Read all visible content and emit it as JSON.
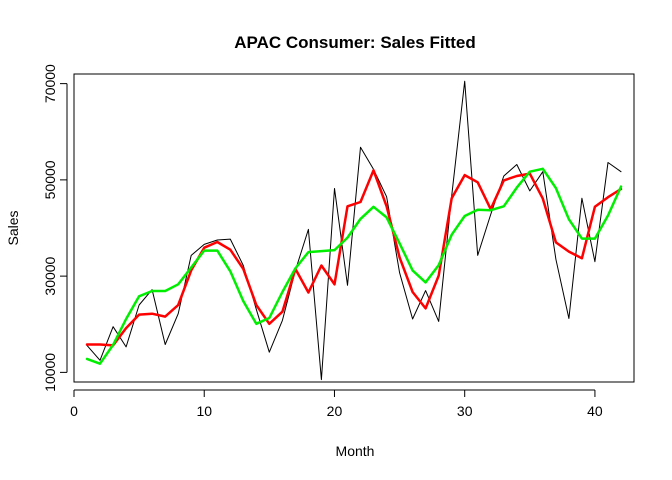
{
  "chart_data": {
    "type": "line",
    "title": "APAC Consumer: Sales Fitted",
    "xlabel": "Month",
    "ylabel": "Sales",
    "xlim": [
      0,
      43
    ],
    "ylim": [
      8000,
      72000
    ],
    "xticks": [
      0,
      10,
      20,
      30,
      40
    ],
    "yticks": [
      10000,
      30000,
      50000,
      70000
    ],
    "grid": false,
    "legend": "none",
    "series": [
      {
        "color": "#000000",
        "width": 1,
        "x": [
          1,
          2,
          3,
          4,
          5,
          6,
          7,
          8,
          9,
          10,
          11,
          12,
          13,
          14,
          15,
          16,
          17,
          18,
          19,
          20,
          21,
          22,
          23,
          24,
          25,
          26,
          27,
          28,
          29,
          30,
          31,
          32,
          33,
          34,
          35,
          36,
          37,
          38,
          39,
          40,
          41,
          42
        ],
        "y": [
          15600,
          12500,
          19500,
          15300,
          24000,
          27200,
          15800,
          22200,
          34300,
          36600,
          37500,
          37700,
          32200,
          23100,
          14200,
          20800,
          31200,
          39700,
          8500,
          48200,
          28100,
          56800,
          52200,
          46500,
          30700,
          21100,
          27000,
          20600,
          46700,
          70500,
          34300,
          42800,
          50800,
          53200,
          47700,
          51700,
          33500,
          21200,
          46200,
          33000,
          53600,
          51700
        ]
      },
      {
        "color": "#ff0000",
        "width": 2.5,
        "x": [
          1,
          2,
          3,
          4,
          5,
          6,
          7,
          8,
          9,
          10,
          11,
          12,
          13,
          14,
          15,
          16,
          17,
          18,
          19,
          20,
          21,
          22,
          23,
          24,
          25,
          26,
          27,
          28,
          29,
          30,
          31,
          32,
          33,
          34,
          35,
          36,
          37,
          38,
          39,
          40,
          41,
          42
        ],
        "y": [
          15800,
          15800,
          15600,
          19200,
          22000,
          22200,
          21600,
          24000,
          31200,
          35900,
          37100,
          35500,
          31500,
          24000,
          20100,
          22600,
          31500,
          26600,
          32200,
          28300,
          44500,
          45400,
          52000,
          44500,
          33900,
          26700,
          23300,
          30100,
          46200,
          51000,
          49500,
          43900,
          49900,
          50800,
          51300,
          46100,
          37000,
          35100,
          33700,
          44400,
          46400,
          48100
        ]
      },
      {
        "color": "#00ee00",
        "width": 2.5,
        "x": [
          1,
          2,
          3,
          4,
          5,
          6,
          7,
          8,
          9,
          10,
          11,
          12,
          13,
          14,
          15,
          16,
          17,
          18,
          19,
          20,
          21,
          22,
          23,
          24,
          25,
          26,
          27,
          28,
          29,
          30,
          31,
          32,
          33,
          34,
          35,
          36,
          37,
          38,
          39,
          40,
          41,
          42
        ],
        "y": [
          12800,
          11800,
          15700,
          21100,
          25800,
          26900,
          26900,
          28300,
          31800,
          35300,
          35300,
          31000,
          24800,
          20100,
          21300,
          26700,
          31600,
          35000,
          35200,
          35400,
          38000,
          41900,
          44400,
          42200,
          36800,
          31200,
          28700,
          32300,
          38600,
          42500,
          43800,
          43700,
          44500,
          48400,
          51700,
          52300,
          48300,
          41800,
          37800,
          37800,
          42600,
          48600
        ]
      }
    ]
  }
}
